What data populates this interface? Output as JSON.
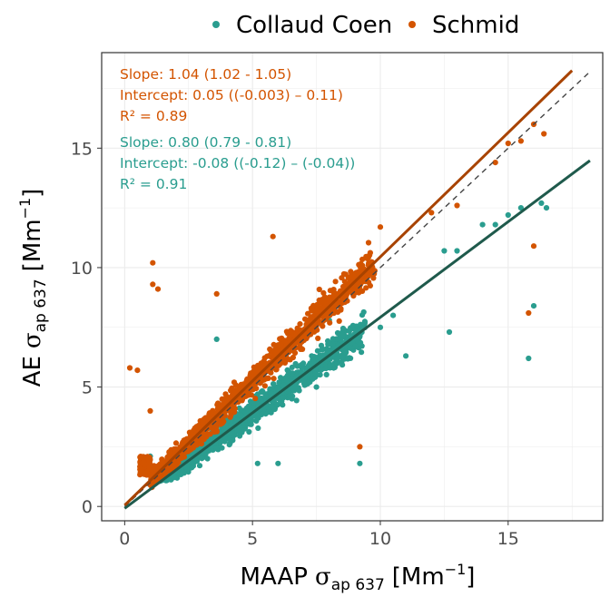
{
  "colors": {
    "collaud_points": "#2a9d8f",
    "collaud_line": "#1f5a4c",
    "schmid_points": "#d35400",
    "schmid_line": "#a84300",
    "grid": "#ebebeb",
    "panel_border": "#333333",
    "one_to_one": "#444444"
  },
  "chart_data": {
    "type": "scatter",
    "xlabel": {
      "main": "MAAP",
      "sym": "σ",
      "sub": "ap 637",
      "unit_open": "[Mm",
      "unit_sup": "−1",
      "unit_close": "]"
    },
    "ylabel": {
      "main": "AE",
      "sym": "σ",
      "sub": "ap 637",
      "unit_open": "[Mm",
      "unit_sup": "−1",
      "unit_close": "]"
    },
    "xlim": [
      -0.9,
      18.7
    ],
    "ylim": [
      -0.6,
      19.0
    ],
    "xticks": [
      0,
      5,
      10,
      15
    ],
    "yticks": [
      0,
      5,
      10,
      15
    ],
    "grid": true,
    "legend_position": "top",
    "one_to_one_line": {
      "style": "dashed",
      "from": [
        0,
        0
      ],
      "to": [
        18.2,
        18.2
      ]
    },
    "series": [
      {
        "name": "Collaud Coen",
        "color_key": "collaud",
        "fit": {
          "slope": 0.8,
          "intercept": -0.08,
          "x_range": [
            0,
            18.2
          ]
        },
        "annotation": [
          "Slope: 0.80 (0.79 - 0.81)",
          "Intercept: -0.08 ((-0.12) – (-0.04))",
          "R² = 0.91"
        ],
        "outliers": [
          [
            1.0,
            2.1
          ],
          [
            1.3,
            1.2
          ],
          [
            2.0,
            1.6
          ],
          [
            3.6,
            7.0
          ],
          [
            5.2,
            1.8
          ],
          [
            6.0,
            1.8
          ],
          [
            7.5,
            5.0
          ],
          [
            8.0,
            7.8
          ],
          [
            9.2,
            1.8
          ],
          [
            10.0,
            7.5
          ],
          [
            10.5,
            8.0
          ],
          [
            11.0,
            6.3
          ],
          [
            12.5,
            10.7
          ],
          [
            12.7,
            7.3
          ],
          [
            13.0,
            10.7
          ],
          [
            14.0,
            11.8
          ],
          [
            14.5,
            11.8
          ],
          [
            15.0,
            12.2
          ],
          [
            15.5,
            12.5
          ],
          [
            15.8,
            6.2
          ],
          [
            16.0,
            8.4
          ],
          [
            16.3,
            12.7
          ],
          [
            16.5,
            12.5
          ]
        ]
      },
      {
        "name": "Schmid",
        "color_key": "schmid",
        "fit": {
          "slope": 1.04,
          "intercept": 0.05,
          "x_range": [
            0,
            17.5
          ]
        },
        "annotation": [
          "Slope: 1.04 (1.02 - 1.05)",
          "Intercept: 0.05 ((-0.003) –  0.11)",
          "R² = 0.89"
        ],
        "outliers": [
          [
            0.2,
            5.8
          ],
          [
            0.5,
            5.7
          ],
          [
            1.1,
            10.2
          ],
          [
            1.1,
            9.3
          ],
          [
            1.3,
            9.1
          ],
          [
            1.0,
            4.0
          ],
          [
            3.6,
            8.9
          ],
          [
            5.8,
            11.3
          ],
          [
            9.2,
            2.5
          ],
          [
            10.0,
            11.7
          ],
          [
            12.0,
            12.3
          ],
          [
            13.0,
            12.6
          ],
          [
            14.5,
            14.4
          ],
          [
            15.0,
            15.2
          ],
          [
            15.5,
            15.3
          ],
          [
            15.8,
            8.1
          ],
          [
            16.0,
            16.0
          ],
          [
            16.4,
            15.6
          ],
          [
            16.0,
            10.9
          ],
          [
            5.3,
            5.5
          ]
        ]
      }
    ]
  }
}
